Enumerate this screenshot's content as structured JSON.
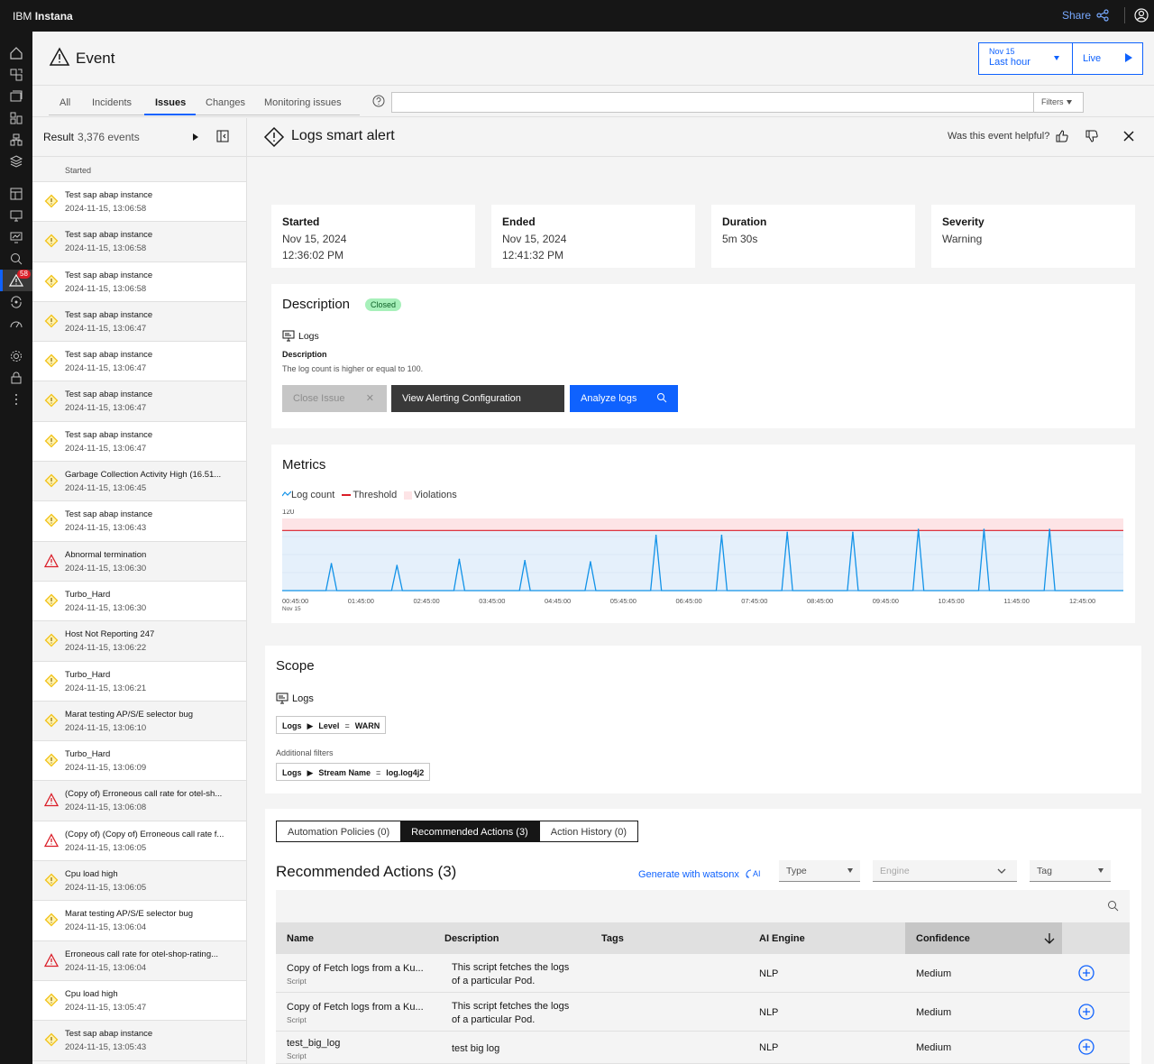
{
  "topbar": {
    "brand_prefix": "IBM",
    "brand_name": "Instana",
    "share_label": "Share"
  },
  "rail": {
    "icons": [
      "home-icon",
      "infrastructure-icon",
      "applications-icon",
      "platforms-icon",
      "websites-icon",
      "layers-icon",
      "dashboards-icon",
      "synthetic-monitoring-icon",
      "mobile-app-icon",
      "analytics-icon",
      "events-icon",
      "automation-icon",
      "sli-icon",
      "settings-icon",
      "lock-icon",
      "more-icon"
    ],
    "events_badge": "58"
  },
  "header": {
    "title": "Event",
    "time_date": "Nov 15",
    "time_range": "Last hour",
    "live_label": "Live"
  },
  "tabs": [
    "All",
    "Incidents",
    "Issues",
    "Changes",
    "Monitoring issues"
  ],
  "active_tab": "Issues",
  "filters_label": "Filters",
  "list": {
    "result_label": "Result",
    "result_count": "3,376 events",
    "column": "Started",
    "items": [
      {
        "name": "Test sap abap instance",
        "time": "2024-11-15, 13:06:58",
        "severity": "warning"
      },
      {
        "name": "Test sap abap instance",
        "time": "2024-11-15, 13:06:58",
        "severity": "warning"
      },
      {
        "name": "Test sap abap instance",
        "time": "2024-11-15, 13:06:58",
        "severity": "warning"
      },
      {
        "name": "Test sap abap instance",
        "time": "2024-11-15, 13:06:47",
        "severity": "warning"
      },
      {
        "name": "Test sap abap instance",
        "time": "2024-11-15, 13:06:47",
        "severity": "warning"
      },
      {
        "name": "Test sap abap instance",
        "time": "2024-11-15, 13:06:47",
        "severity": "warning"
      },
      {
        "name": "Test sap abap instance",
        "time": "2024-11-15, 13:06:47",
        "severity": "warning"
      },
      {
        "name": "Garbage Collection Activity High (16.51...",
        "time": "2024-11-15, 13:06:45",
        "severity": "warning"
      },
      {
        "name": "Test sap abap instance",
        "time": "2024-11-15, 13:06:43",
        "severity": "warning"
      },
      {
        "name": "Abnormal termination",
        "time": "2024-11-15, 13:06:30",
        "severity": "critical"
      },
      {
        "name": "Turbo_Hard",
        "time": "2024-11-15, 13:06:30",
        "severity": "warning"
      },
      {
        "name": "Host Not Reporting 247",
        "time": "2024-11-15, 13:06:22",
        "severity": "warning"
      },
      {
        "name": "Turbo_Hard",
        "time": "2024-11-15, 13:06:21",
        "severity": "warning"
      },
      {
        "name": "Marat testing AP/S/E selector bug",
        "time": "2024-11-15, 13:06:10",
        "severity": "warning"
      },
      {
        "name": "Turbo_Hard",
        "time": "2024-11-15, 13:06:09",
        "severity": "warning"
      },
      {
        "name": "(Copy of) Erroneous call rate for otel-sh...",
        "time": "2024-11-15, 13:06:08",
        "severity": "critical"
      },
      {
        "name": "(Copy of) (Copy of) Erroneous call rate f...",
        "time": "2024-11-15, 13:06:05",
        "severity": "critical"
      },
      {
        "name": "Cpu load high",
        "time": "2024-11-15, 13:06:05",
        "severity": "warning"
      },
      {
        "name": "Marat testing AP/S/E selector bug",
        "time": "2024-11-15, 13:06:04",
        "severity": "warning"
      },
      {
        "name": "Erroneous call rate for otel-shop-rating...",
        "time": "2024-11-15, 13:06:04",
        "severity": "critical"
      },
      {
        "name": "Cpu load high",
        "time": "2024-11-15, 13:05:47",
        "severity": "warning"
      },
      {
        "name": "Test sap abap instance",
        "time": "2024-11-15, 13:05:43",
        "severity": "warning"
      }
    ]
  },
  "detail": {
    "title": "Logs smart alert",
    "helpful_label": "Was this event helpful?",
    "stats": [
      {
        "label": "Started",
        "line1": "Nov 15, 2024",
        "line2": "12:36:02 PM"
      },
      {
        "label": "Ended",
        "line1": "Nov 15, 2024",
        "line2": "12:41:32 PM"
      },
      {
        "label": "Duration",
        "line1": "5m 30s",
        "line2": ""
      },
      {
        "label": "Severity",
        "line1": "Warning",
        "line2": ""
      }
    ],
    "description": {
      "title": "Description",
      "status": "Closed",
      "entity": "Logs",
      "label": "Description",
      "text": "The log count is higher or equal to 100.",
      "close_btn": "Close Issue",
      "config_btn": "View Alerting Configuration",
      "analyze_btn": "Analyze logs"
    },
    "metrics": {
      "title": "Metrics",
      "legend": [
        "Log count",
        "Threshold",
        "Violations"
      ],
      "ymax_label": "120",
      "x_date_label": "Nov 15"
    },
    "scope": {
      "title": "Scope",
      "entity": "Logs",
      "filter1": {
        "prefix": "Logs",
        "key": "Level",
        "op": "=",
        "value": "WARN"
      },
      "additional_label": "Additional filters",
      "filter2": {
        "prefix": "Logs",
        "key": "Stream Name",
        "op": "=",
        "value": "log.log4j2"
      }
    },
    "actions": {
      "seg_tabs": [
        "Automation Policies (0)",
        "Recommended Actions (3)",
        "Action History (0)"
      ],
      "title": "Recommended Actions (3)",
      "watsonx_label": "Generate with watsonx",
      "type_placeholder": "Type",
      "engine_placeholder": "Engine",
      "tag_placeholder": "Tag",
      "columns": [
        "Name",
        "Description",
        "Tags",
        "AI Engine",
        "Confidence"
      ],
      "rows": [
        {
          "name": "Copy of Fetch logs from a Ku...",
          "kind": "Script",
          "desc": "This script fetches the logs of a particular Pod.",
          "engine": "NLP",
          "confidence": "Medium"
        },
        {
          "name": "Copy of Fetch logs from a Ku...",
          "kind": "Script",
          "desc": "This script fetches the logs of a particular Pod.",
          "engine": "NLP",
          "confidence": "Medium"
        },
        {
          "name": "test_big_log",
          "kind": "Script",
          "desc": "test big log",
          "engine": "NLP",
          "confidence": "Medium"
        }
      ]
    }
  },
  "chart_data": {
    "type": "line",
    "title": "",
    "xlabel": "",
    "ylabel": "",
    "ylim": [
      0,
      120
    ],
    "x_ticks": [
      "00:45:00",
      "01:45:00",
      "02:45:00",
      "03:45:00",
      "04:45:00",
      "05:45:00",
      "06:45:00",
      "07:45:00",
      "08:45:00",
      "09:45:00",
      "10:45:00",
      "11:45:00",
      "12:45:00"
    ],
    "threshold": 100,
    "series": [
      {
        "name": "Log count",
        "color": "#1192e8",
        "peaks": [
          {
            "time": "01:30",
            "value": 45
          },
          {
            "time": "02:30",
            "value": 42
          },
          {
            "time": "03:27",
            "value": 52
          },
          {
            "time": "04:27",
            "value": 50
          },
          {
            "time": "05:27",
            "value": 48
          },
          {
            "time": "06:27",
            "value": 92
          },
          {
            "time": "07:27",
            "value": 92
          },
          {
            "time": "08:27",
            "value": 97
          },
          {
            "time": "09:27",
            "value": 97
          },
          {
            "time": "10:27",
            "value": 102
          },
          {
            "time": "11:27",
            "value": 102
          },
          {
            "time": "12:27",
            "value": 102
          }
        ]
      }
    ]
  }
}
